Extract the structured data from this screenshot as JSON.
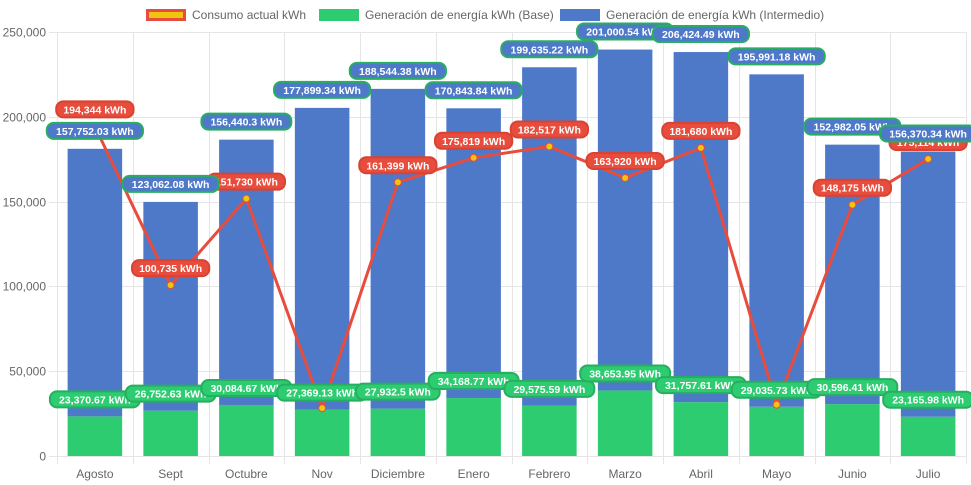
{
  "chart_data": {
    "type": "bar",
    "subtype": "stacked-bar-with-line",
    "title": "",
    "xlabel": "",
    "ylabel": "",
    "ylim": [
      0,
      250000
    ],
    "yticks": [
      0,
      50000,
      100000,
      150000,
      200000,
      250000
    ],
    "ytick_labels": [
      "0",
      "50,000",
      "100,000",
      "150,000",
      "200,000",
      "250,000"
    ],
    "grid": true,
    "legend_position": "top-center",
    "unit_suffix": " kWh",
    "categories": [
      "Agosto",
      "Sept",
      "Octubre",
      "Nov",
      "Diciembre",
      "Enero",
      "Febrero",
      "Marzo",
      "Abril",
      "Mayo",
      "Junio",
      "Julio"
    ],
    "series": [
      {
        "name": "Consumo actual kWh",
        "kind": "line",
        "color": "#e74c3c",
        "point_color": "#f1c40f",
        "values": [
          194344,
          100735,
          151730,
          28200,
          161399,
          175819,
          182517,
          163920,
          181680,
          30300,
          148175,
          175114
        ],
        "labels": [
          "194,344 kWh",
          "100,735 kWh",
          "151,730 kWh",
          "",
          "161,399 kWh",
          "175,819 kWh",
          "182,517 kWh",
          "163,920 kWh",
          "181,680 kWh",
          "",
          "148,175 kWh",
          "175,114 kWh"
        ]
      },
      {
        "name": "Generación de energía kWh (Base)",
        "kind": "bar",
        "stack": 0,
        "color": "#2ecc71",
        "values": [
          23370.67,
          26752.63,
          30084.67,
          27369.13,
          27932.5,
          34168.77,
          29575.59,
          38653.95,
          31757.61,
          29035.73,
          30596.41,
          23165.98
        ],
        "labels": [
          "23,370.67 kWh",
          "26,752.63 kWh",
          "30,084.67 kWh",
          "27,369.13 kWh",
          "27,932.5 kWh",
          "34,168.77 kWh",
          "29,575.59 kWh",
          "38,653.95 kWh",
          "31,757.61 kWh",
          "29,035.73 kWh",
          "30,596.41 kWh",
          "23,165.98 kWh"
        ]
      },
      {
        "name": "Generación de energía kWh (Intermedio)",
        "kind": "bar",
        "stack": 1,
        "color": "#4e79c9",
        "values": [
          157752.03,
          123062.08,
          156440.3,
          177899.34,
          188544.38,
          170843.84,
          199635.22,
          201000.54,
          206424.49,
          195991.18,
          152982.05,
          156370.34
        ],
        "labels": [
          "157,752.03 kWh",
          "123,062.08 kWh",
          "156,440.3 kWh",
          "177,899.34 kWh",
          "188,544.38 kWh",
          "170,843.84 kWh",
          "199,635.22 kWh",
          "201,000.54 kWh",
          "206,424.49 kWh",
          "195,991.18 kWh",
          "152,982.05 kWh",
          "156,370.34 kWh"
        ]
      }
    ]
  },
  "legend": {
    "items": [
      {
        "label": "Consumo actual kWh",
        "fill": "#f1c40f",
        "border": "#e74c3c"
      },
      {
        "label": "Generación de energía kWh (Base)",
        "fill": "#2ecc71",
        "border": "#2ecc71"
      },
      {
        "label": "Generación de energía kWh (Intermedio)",
        "fill": "#4e79c9",
        "border": "#4e79c9"
      }
    ]
  },
  "colors": {
    "grid": "#e5e5e5",
    "axis_text": "#666666",
    "label_border_blue": "#27ae60",
    "label_border_green": "#27ae60",
    "label_border_red": "#d84332"
  }
}
